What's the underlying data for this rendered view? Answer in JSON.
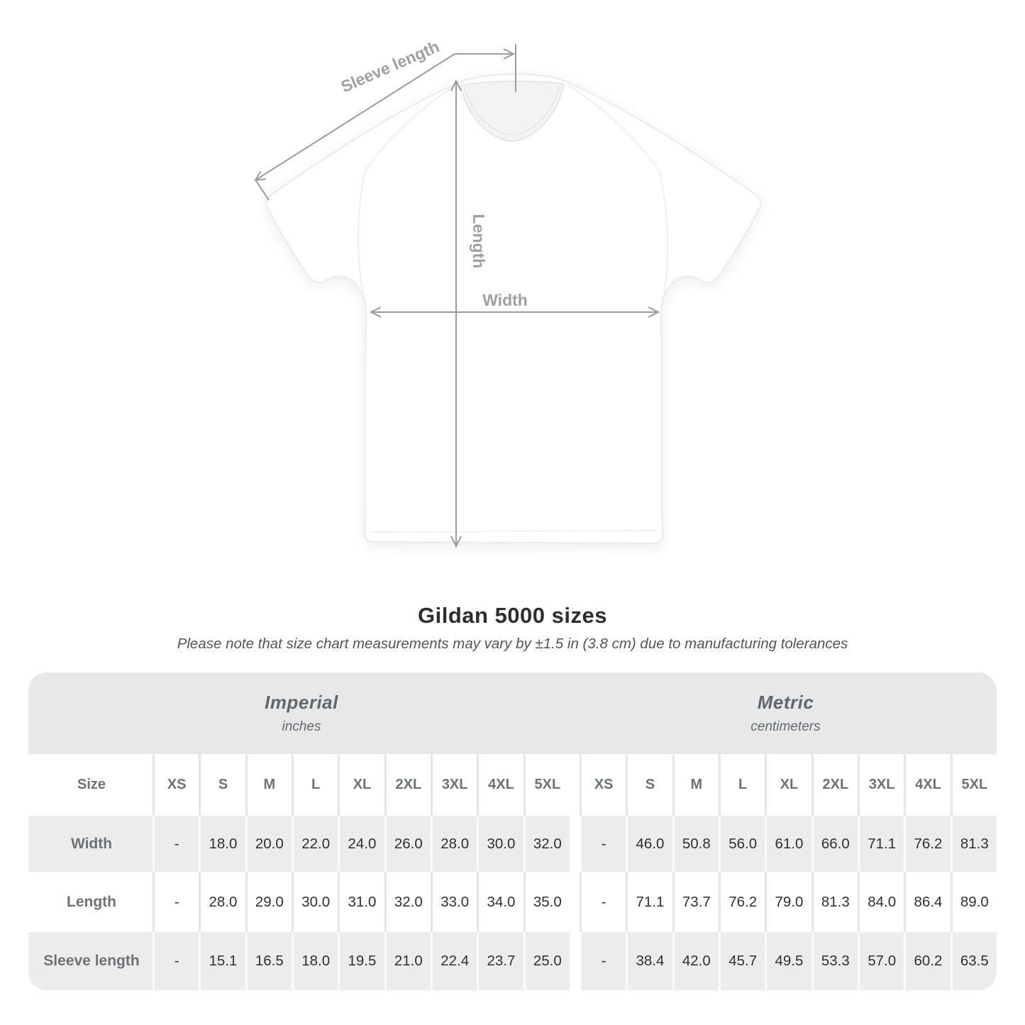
{
  "figure": {
    "labels": {
      "sleeve_length": "Sleeve length",
      "length": "Length",
      "width": "Width"
    }
  },
  "title": "Gildan 5000 sizes",
  "subtitle": "Please note that size chart measurements may vary by ±1.5 in (3.8 cm) due to manufacturing tolerances",
  "table": {
    "sections": [
      {
        "label": "Imperial",
        "sublabel": "inches"
      },
      {
        "label": "Metric",
        "sublabel": "centimeters"
      }
    ],
    "size_header": "Size",
    "columns": [
      "XS",
      "S",
      "M",
      "L",
      "XL",
      "2XL",
      "3XL",
      "4XL",
      "5XL"
    ],
    "rows": [
      {
        "label": "Width",
        "imperial": [
          "-",
          "18.0",
          "20.0",
          "22.0",
          "24.0",
          "26.0",
          "28.0",
          "30.0",
          "32.0"
        ],
        "metric": [
          "-",
          "46.0",
          "50.8",
          "56.0",
          "61.0",
          "66.0",
          "71.1",
          "76.2",
          "81.3"
        ]
      },
      {
        "label": "Length",
        "imperial": [
          "-",
          "28.0",
          "29.0",
          "30.0",
          "31.0",
          "32.0",
          "33.0",
          "34.0",
          "35.0"
        ],
        "metric": [
          "-",
          "71.1",
          "73.7",
          "76.2",
          "79.0",
          "81.3",
          "84.0",
          "86.4",
          "89.0"
        ]
      },
      {
        "label": "Sleeve length",
        "imperial": [
          "-",
          "15.1",
          "16.5",
          "18.0",
          "19.5",
          "21.0",
          "22.4",
          "23.7",
          "25.0"
        ],
        "metric": [
          "-",
          "38.4",
          "42.0",
          "45.7",
          "49.5",
          "53.3",
          "57.0",
          "60.2",
          "63.5"
        ]
      }
    ]
  },
  "chart_data": {
    "type": "table",
    "title": "Gildan 5000 sizes",
    "column_groups": [
      "Imperial (inches)",
      "Metric (centimeters)"
    ],
    "columns": [
      "XS",
      "S",
      "M",
      "L",
      "XL",
      "2XL",
      "3XL",
      "4XL",
      "5XL"
    ],
    "rows": [
      {
        "measure": "Width",
        "imperial": [
          null,
          18.0,
          20.0,
          22.0,
          24.0,
          26.0,
          28.0,
          30.0,
          32.0
        ],
        "metric": [
          null,
          46.0,
          50.8,
          56.0,
          61.0,
          66.0,
          71.1,
          76.2,
          81.3
        ]
      },
      {
        "measure": "Length",
        "imperial": [
          null,
          28.0,
          29.0,
          30.0,
          31.0,
          32.0,
          33.0,
          34.0,
          35.0
        ],
        "metric": [
          null,
          71.1,
          73.7,
          76.2,
          79.0,
          81.3,
          84.0,
          86.4,
          89.0
        ]
      },
      {
        "measure": "Sleeve length",
        "imperial": [
          null,
          15.1,
          16.5,
          18.0,
          19.5,
          21.0,
          22.4,
          23.7,
          25.0
        ],
        "metric": [
          null,
          38.4,
          42.0,
          45.7,
          49.5,
          53.3,
          57.0,
          60.2,
          63.5
        ]
      }
    ]
  },
  "colors": {
    "background": "#ffffff",
    "band_gray": "#e8e8e8",
    "row_gray": "#ececec",
    "annotation_line": "#9b9b9b",
    "annotation_text": "#a0a0a0",
    "heading_text": "#2e2e2e",
    "table_header_text": "#6d7276",
    "value_text": "#303030"
  }
}
